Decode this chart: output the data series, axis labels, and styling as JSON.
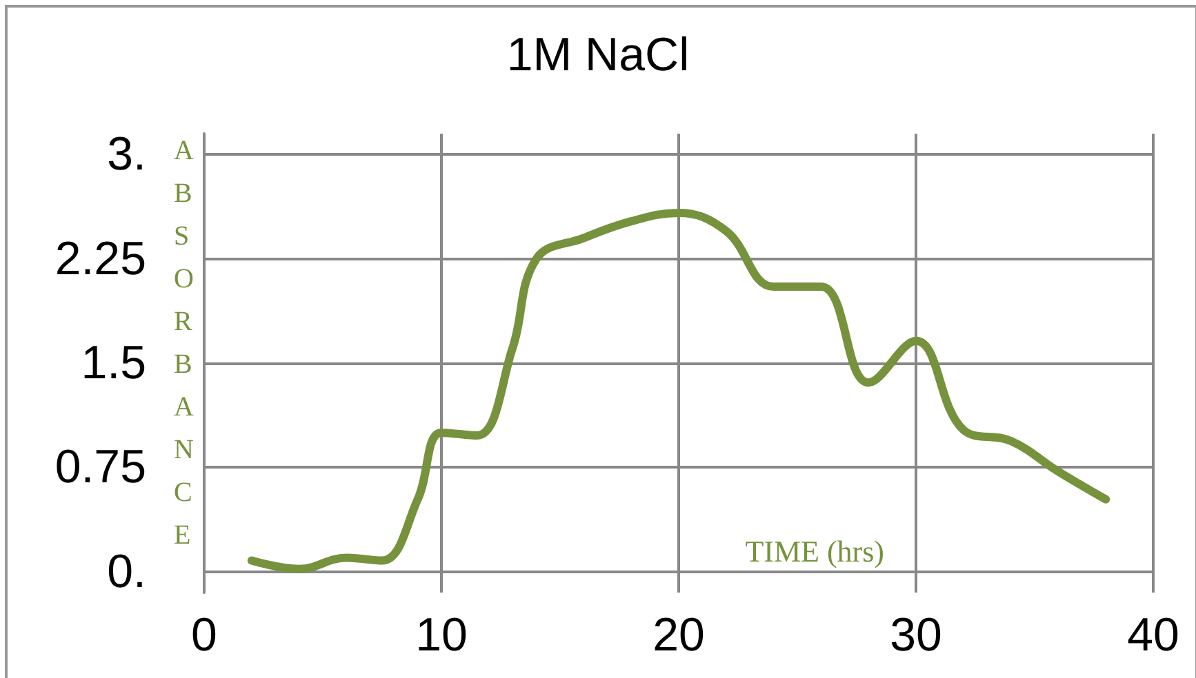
{
  "chart_data": {
    "type": "line",
    "title": "1M NaCl",
    "xlabel": "TIME (hrs)",
    "ylabel": "ABSORBANCE",
    "x": [
      2,
      4,
      6,
      7.5,
      9,
      10,
      11.5,
      13,
      14,
      16,
      18,
      20,
      22,
      24,
      26,
      28,
      30,
      32,
      34,
      36,
      38
    ],
    "series": [
      {
        "color": "#76923c",
        "values": [
          0.08,
          0.02,
          0.1,
          0.08,
          0.52,
          1.0,
          0.98,
          1.61,
          2.25,
          2.4,
          2.52,
          2.58,
          2.45,
          2.05,
          2.05,
          1.36,
          1.66,
          1.02,
          0.94,
          0.72,
          0.52
        ]
      }
    ],
    "xlim": [
      0,
      40
    ],
    "xticks": [
      0,
      10,
      20,
      30,
      40
    ],
    "ylim": [
      -0.15,
      3.15
    ],
    "yticks": [
      {
        "value": 0,
        "label": "0."
      },
      0.75,
      1.5,
      2.25,
      {
        "value": 3,
        "label": "3."
      }
    ],
    "grid": true,
    "marker": "none",
    "line_style": "solid"
  }
}
